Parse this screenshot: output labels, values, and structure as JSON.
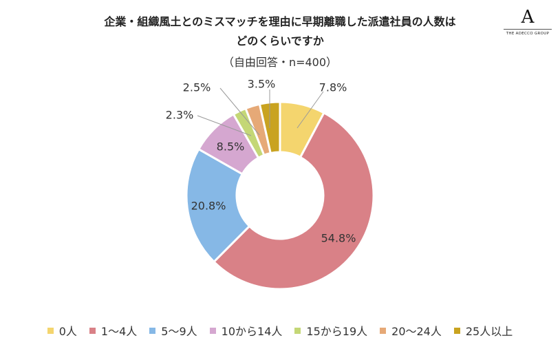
{
  "logo": {
    "mark": "A",
    "text": "THE ADECCO GROUP"
  },
  "chart_data": {
    "type": "pie",
    "variant": "donut",
    "title_lines": [
      "企業・組織風土とのミスマッチを理由に早期離職した派遣社員の人数は",
      "どのくらいですか"
    ],
    "subtitle": "（自由回答・n=400）",
    "legend_position": "bottom",
    "slices": [
      {
        "label": "0人",
        "value": 7.8,
        "value_label": "7.8%",
        "color": "#F4D56E"
      },
      {
        "label": "1～4人",
        "value": 54.8,
        "value_label": "54.8%",
        "color": "#D98187"
      },
      {
        "label": "5～9人",
        "value": 20.8,
        "value_label": "20.8%",
        "color": "#86B8E6"
      },
      {
        "label": "10から14人",
        "value": 8.5,
        "value_label": "8.5%",
        "color": "#D5A7D0"
      },
      {
        "label": "15から19人",
        "value": 2.3,
        "value_label": "2.3%",
        "color": "#C4D776"
      },
      {
        "label": "20～24人",
        "value": 2.5,
        "value_label": "2.5%",
        "color": "#E6A977"
      },
      {
        "label": "25人以上",
        "value": 3.5,
        "value_label": "3.5%",
        "color": "#C9A320"
      }
    ]
  }
}
